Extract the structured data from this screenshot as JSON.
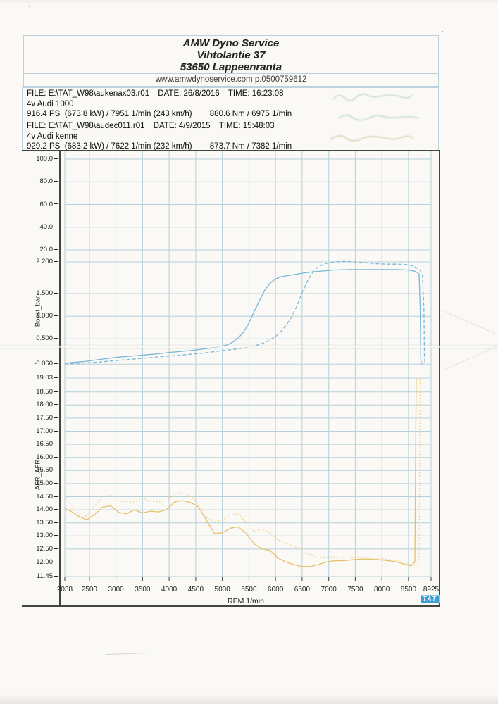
{
  "header": {
    "business_name": "AMW Dyno Service",
    "address_street": "Vihtolantie 37",
    "address_city": "53650 Lappeenranta",
    "website_line": "www.amwdynoservice.com p.0500759612"
  },
  "runs": [
    {
      "file_label": "FILE:",
      "file_path": "E:\\TAT_W98\\aukenax03.r01",
      "date_label": "DATE:",
      "date": "26/8/2016",
      "time_label": "TIME:",
      "time": "16:23:08",
      "vehicle": "4v Audi 1000",
      "power": "916.4 PS  (673.8 kW) / 7951 1/min (243 km/h)",
      "torque": "880.6 Nm / 6975 1/min"
    },
    {
      "file_label": "FILE:",
      "file_path": "E:\\TAT_W98\\audec011.r01",
      "date_label": "DATE:",
      "date": "4/9/2015",
      "time_label": "TIME:",
      "time": "15:48:03",
      "vehicle": "4v Audi kenne",
      "power": "929.2 PS  (683.2 kW) / 7622 1/min (232 km/h)",
      "torque": "873.7 Nm / 7382 1/min"
    }
  ],
  "chart_data": [
    {
      "type": "line",
      "panel": "speed-scale",
      "ylabel": "",
      "yticks": [
        "100.0",
        "80.0",
        "60.0",
        "40.0",
        "20.0"
      ],
      "ylim": [
        20,
        100
      ],
      "xlim": [
        2038,
        8925
      ],
      "grid": true,
      "series": []
    },
    {
      "type": "line",
      "panel": "boost",
      "ylabel": "Boost_bar",
      "yticks": [
        "2.200",
        "1.500",
        "1.000",
        "0.500",
        "-0.060"
      ],
      "ylim": [
        -0.06,
        2.2
      ],
      "xlim": [
        2038,
        8925
      ],
      "grid": true,
      "series": [
        {
          "name": "boost-run1-solid",
          "style": "solid",
          "color": "#79b7d8",
          "points": [
            [
              2038,
              -0.04
            ],
            [
              2200,
              -0.02
            ],
            [
              2400,
              0.0
            ],
            [
              2600,
              0.03
            ],
            [
              2800,
              0.06
            ],
            [
              3000,
              0.09
            ],
            [
              3200,
              0.11
            ],
            [
              3400,
              0.13
            ],
            [
              3600,
              0.15
            ],
            [
              3800,
              0.17
            ],
            [
              4000,
              0.2
            ],
            [
              4200,
              0.22
            ],
            [
              4400,
              0.24
            ],
            [
              4600,
              0.27
            ],
            [
              4800,
              0.3
            ],
            [
              5000,
              0.34
            ],
            [
              5100,
              0.37
            ],
            [
              5200,
              0.43
            ],
            [
              5300,
              0.52
            ],
            [
              5400,
              0.65
            ],
            [
              5500,
              0.85
            ],
            [
              5600,
              1.1
            ],
            [
              5700,
              1.35
            ],
            [
              5800,
              1.58
            ],
            [
              5900,
              1.73
            ],
            [
              6000,
              1.82
            ],
            [
              6100,
              1.87
            ],
            [
              6200,
              1.89
            ],
            [
              6300,
              1.91
            ],
            [
              6400,
              1.93
            ],
            [
              6500,
              1.95
            ],
            [
              6700,
              1.98
            ],
            [
              6900,
              2.0
            ],
            [
              7100,
              2.02
            ],
            [
              7400,
              2.03
            ],
            [
              7700,
              2.03
            ],
            [
              8000,
              2.03
            ],
            [
              8300,
              2.03
            ],
            [
              8500,
              2.02
            ],
            [
              8600,
              2.0
            ],
            [
              8660,
              1.97
            ],
            [
              8700,
              1.93
            ],
            [
              8720,
              1.2
            ],
            [
              8730,
              0.1
            ],
            [
              8740,
              -0.03
            ],
            [
              8770,
              -0.05
            ]
          ]
        },
        {
          "name": "boost-run2-dashed",
          "style": "dashed",
          "color": "#79b7d8",
          "points": [
            [
              2038,
              -0.05
            ],
            [
              2300,
              -0.04
            ],
            [
              2600,
              -0.02
            ],
            [
              3000,
              0.02
            ],
            [
              3400,
              0.06
            ],
            [
              3800,
              0.1
            ],
            [
              4200,
              0.14
            ],
            [
              4600,
              0.18
            ],
            [
              5000,
              0.24
            ],
            [
              5300,
              0.28
            ],
            [
              5600,
              0.34
            ],
            [
              5800,
              0.42
            ],
            [
              6000,
              0.55
            ],
            [
              6100,
              0.66
            ],
            [
              6200,
              0.8
            ],
            [
              6300,
              0.98
            ],
            [
              6400,
              1.22
            ],
            [
              6500,
              1.52
            ],
            [
              6600,
              1.78
            ],
            [
              6700,
              1.97
            ],
            [
              6800,
              2.09
            ],
            [
              6900,
              2.15
            ],
            [
              7000,
              2.18
            ],
            [
              7100,
              2.2
            ],
            [
              7300,
              2.21
            ],
            [
              7500,
              2.2
            ],
            [
              7700,
              2.18
            ],
            [
              7900,
              2.16
            ],
            [
              8100,
              2.15
            ],
            [
              8300,
              2.15
            ],
            [
              8500,
              2.14
            ],
            [
              8600,
              2.1
            ],
            [
              8700,
              2.04
            ],
            [
              8760,
              1.95
            ],
            [
              8790,
              1.2
            ],
            [
              8800,
              0.1
            ],
            [
              8810,
              -0.03
            ],
            [
              8830,
              -0.05
            ]
          ]
        }
      ]
    },
    {
      "type": "line",
      "panel": "afr",
      "ylabel": "AFR_AFR",
      "yticks": [
        "19.03",
        "18.50",
        "18.00",
        "17.50",
        "17.00",
        "16.50",
        "16.00",
        "15.50",
        "15.00",
        "14.50",
        "14.00",
        "13.50",
        "13.00",
        "12.50",
        "12.00",
        "11.45"
      ],
      "ylim": [
        11.45,
        19.03
      ],
      "xlim": [
        2038,
        8925
      ],
      "xticks": [
        "2038",
        "2500",
        "3000",
        "3500",
        "4000",
        "4500",
        "5000",
        "5500",
        "6000",
        "6500",
        "7000",
        "7500",
        "8000",
        "8500",
        "8925"
      ],
      "xlabel": "RPM 1/min",
      "grid": true,
      "series": [
        {
          "name": "afr-run1-solid",
          "style": "solid",
          "color": "#e5c06b",
          "points": [
            [
              2038,
              14.05
            ],
            [
              2150,
              13.95
            ],
            [
              2300,
              13.75
            ],
            [
              2450,
              13.62
            ],
            [
              2600,
              13.82
            ],
            [
              2750,
              14.1
            ],
            [
              2900,
              14.15
            ],
            [
              3050,
              13.9
            ],
            [
              3200,
              13.85
            ],
            [
              3350,
              14.0
            ],
            [
              3500,
              13.88
            ],
            [
              3650,
              13.95
            ],
            [
              3800,
              13.92
            ],
            [
              3950,
              14.0
            ],
            [
              4100,
              14.3
            ],
            [
              4250,
              14.35
            ],
            [
              4400,
              14.28
            ],
            [
              4550,
              14.12
            ],
            [
              4700,
              13.6
            ],
            [
              4850,
              13.1
            ],
            [
              5000,
              13.12
            ],
            [
              5150,
              13.3
            ],
            [
              5300,
              13.35
            ],
            [
              5450,
              13.1
            ],
            [
              5600,
              12.7
            ],
            [
              5750,
              12.5
            ],
            [
              5900,
              12.45
            ],
            [
              6050,
              12.15
            ],
            [
              6200,
              12.0
            ],
            [
              6350,
              11.9
            ],
            [
              6500,
              11.83
            ],
            [
              6650,
              11.83
            ],
            [
              6800,
              11.9
            ],
            [
              6950,
              12.0
            ],
            [
              7100,
              12.05
            ],
            [
              7300,
              12.06
            ],
            [
              7500,
              12.1
            ],
            [
              7700,
              12.12
            ],
            [
              7900,
              12.1
            ],
            [
              8100,
              12.06
            ],
            [
              8300,
              12.0
            ],
            [
              8450,
              11.9
            ],
            [
              8550,
              11.86
            ],
            [
              8620,
              12.0
            ],
            [
              8645,
              19.03
            ]
          ]
        },
        {
          "name": "afr-run2-dotted",
          "style": "dotted",
          "color": "#ecd08a",
          "points": [
            [
              2038,
              14.45
            ],
            [
              2150,
              14.2
            ],
            [
              2300,
              13.85
            ],
            [
              2450,
              13.75
            ],
            [
              2600,
              14.15
            ],
            [
              2750,
              14.5
            ],
            [
              2900,
              14.55
            ],
            [
              3050,
              14.35
            ],
            [
              3200,
              14.3
            ],
            [
              3350,
              14.3
            ],
            [
              3500,
              14.45
            ],
            [
              3650,
              14.32
            ],
            [
              3800,
              14.3
            ],
            [
              3950,
              14.35
            ],
            [
              4100,
              14.6
            ],
            [
              4250,
              14.65
            ],
            [
              4400,
              14.5
            ],
            [
              4550,
              14.25
            ],
            [
              4700,
              13.7
            ],
            [
              4850,
              13.55
            ],
            [
              5000,
              13.62
            ],
            [
              5150,
              13.8
            ],
            [
              5300,
              13.85
            ],
            [
              5450,
              13.5
            ],
            [
              5600,
              13.15
            ],
            [
              5750,
              13.28
            ],
            [
              5900,
              13.1
            ],
            [
              6050,
              12.85
            ],
            [
              6200,
              12.72
            ],
            [
              6350,
              12.6
            ],
            [
              6500,
              12.4
            ],
            [
              6650,
              12.3
            ],
            [
              6800,
              12.15
            ],
            [
              6950,
              12.2
            ],
            [
              7100,
              12.2
            ],
            [
              7300,
              12.16
            ],
            [
              7500,
              12.2
            ],
            [
              7700,
              12.18
            ],
            [
              7900,
              12.16
            ],
            [
              8100,
              12.1
            ],
            [
              8300,
              12.05
            ],
            [
              8450,
              11.95
            ],
            [
              8600,
              11.88
            ],
            [
              8700,
              12.0
            ],
            [
              8720,
              19.03
            ]
          ]
        }
      ]
    }
  ],
  "footer": {
    "logo_text": "TAT"
  }
}
